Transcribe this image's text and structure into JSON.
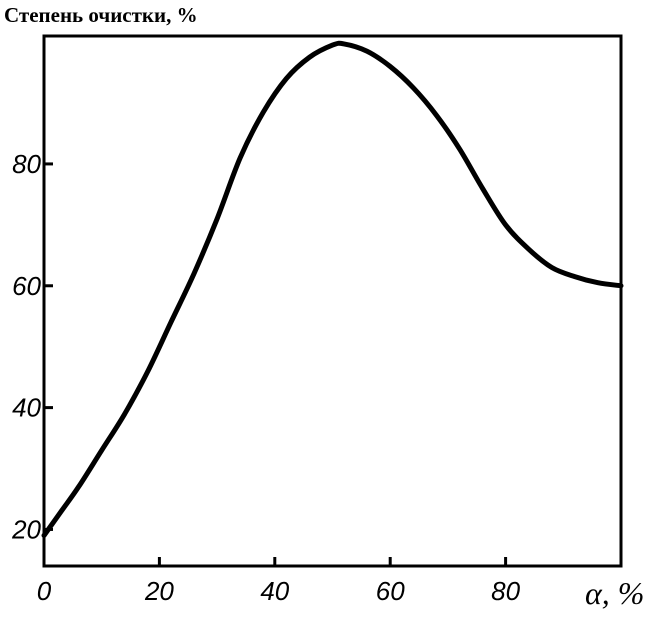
{
  "chart_data": {
    "type": "line",
    "title": "",
    "ylabel": "Степень очистки, %",
    "xlabel_symbol": "α",
    "xlabel_unit": ", %",
    "xlim": [
      0,
      100
    ],
    "ylim": [
      14,
      101
    ],
    "x_ticks": [
      0,
      20,
      40,
      60,
      80
    ],
    "y_ticks": [
      20,
      40,
      60,
      80
    ],
    "grid": false,
    "series": [
      {
        "x": [
          0,
          3,
          6,
          10,
          14,
          18,
          22,
          26,
          30,
          34,
          38,
          42,
          46,
          50,
          52,
          56,
          60,
          64,
          68,
          72,
          76,
          80,
          84,
          88,
          92,
          96,
          100
        ],
        "y": [
          19,
          23,
          27,
          33,
          39,
          46,
          54,
          62,
          71,
          81,
          88.5,
          94,
          97.5,
          99.5,
          99.7,
          98.5,
          96,
          92.5,
          88,
          82.5,
          76,
          70,
          66,
          63,
          61.5,
          60.5,
          60
        ]
      }
    ],
    "colors": {
      "line": "#000000",
      "frame": "#000000"
    }
  }
}
